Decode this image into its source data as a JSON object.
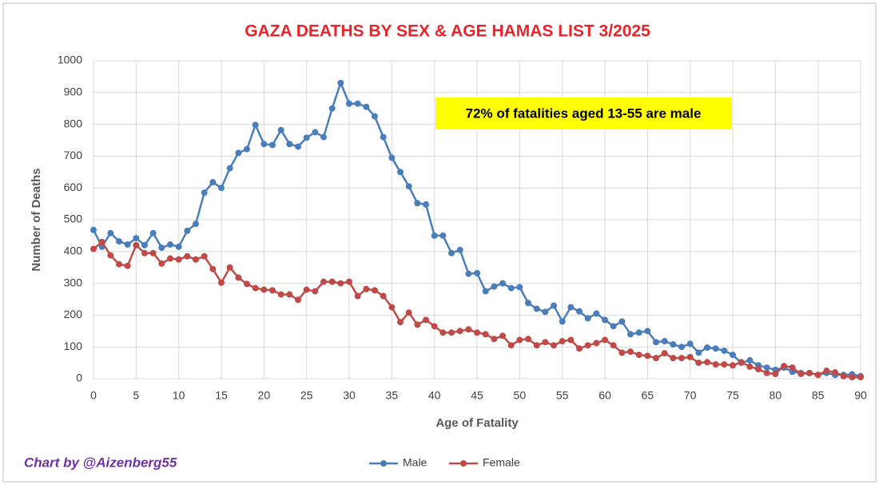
{
  "chart_data": {
    "type": "line",
    "title": "GAZA DEATHS BY SEX & AGE  HAMAS LIST 3/2025",
    "annotation": "72% of fatalities aged 13-55 are male",
    "credit": "Chart by @Aizenberg55",
    "x_label": "Age of Fatality",
    "y_label": "Number of Deaths",
    "x": [
      0,
      1,
      2,
      3,
      4,
      5,
      6,
      7,
      8,
      9,
      10,
      11,
      12,
      13,
      14,
      15,
      16,
      17,
      18,
      19,
      20,
      21,
      22,
      23,
      24,
      25,
      26,
      27,
      28,
      29,
      30,
      31,
      32,
      33,
      34,
      35,
      36,
      37,
      38,
      39,
      40,
      41,
      42,
      43,
      44,
      45,
      46,
      47,
      48,
      49,
      50,
      51,
      52,
      53,
      54,
      55,
      56,
      57,
      58,
      59,
      60,
      61,
      62,
      63,
      64,
      65,
      66,
      67,
      68,
      69,
      70,
      71,
      72,
      73,
      74,
      75,
      76,
      77,
      78,
      79,
      80,
      81,
      82,
      83,
      84,
      85,
      86,
      87,
      88,
      89,
      90
    ],
    "series": [
      {
        "name": "Male",
        "color": "#4a7ebb",
        "values": [
          468,
          415,
          458,
          432,
          422,
          442,
          420,
          458,
          412,
          422,
          415,
          465,
          487,
          585,
          618,
          600,
          662,
          710,
          722,
          798,
          738,
          735,
          782,
          738,
          730,
          758,
          775,
          760,
          850,
          930,
          865,
          865,
          855,
          825,
          760,
          695,
          650,
          605,
          552,
          548,
          450,
          450,
          395,
          405,
          330,
          332,
          275,
          290,
          300,
          285,
          288,
          238,
          220,
          210,
          230,
          180,
          225,
          212,
          190,
          205,
          185,
          165,
          180,
          140,
          145,
          150,
          115,
          118,
          108,
          100,
          110,
          82,
          98,
          95,
          88,
          75,
          50,
          58,
          42,
          35,
          28,
          35,
          22,
          18,
          18,
          12,
          18,
          12,
          12,
          14,
          8
        ]
      },
      {
        "name": "Female",
        "color": "#be4b48",
        "values": [
          408,
          430,
          388,
          360,
          355,
          420,
          395,
          395,
          362,
          378,
          375,
          385,
          375,
          385,
          345,
          302,
          350,
          318,
          298,
          285,
          280,
          278,
          265,
          265,
          248,
          280,
          275,
          305,
          305,
          300,
          305,
          260,
          282,
          278,
          260,
          225,
          178,
          208,
          170,
          185,
          165,
          145,
          145,
          150,
          155,
          145,
          140,
          125,
          135,
          105,
          122,
          125,
          105,
          115,
          105,
          118,
          122,
          95,
          105,
          112,
          122,
          105,
          82,
          85,
          75,
          72,
          65,
          80,
          65,
          65,
          68,
          50,
          52,
          45,
          45,
          42,
          52,
          38,
          30,
          18,
          15,
          40,
          35,
          15,
          18,
          12,
          25,
          20,
          8,
          5,
          5
        ]
      }
    ],
    "xlim": [
      0,
      90
    ],
    "xticks": [
      0,
      5,
      10,
      15,
      20,
      25,
      30,
      35,
      40,
      45,
      50,
      55,
      60,
      65,
      70,
      75,
      80,
      85,
      90
    ],
    "ylim": [
      0,
      1000
    ],
    "yticks": [
      0,
      100,
      200,
      300,
      400,
      500,
      600,
      700,
      800,
      900,
      1000
    ],
    "grid": true,
    "legend": "bottom"
  }
}
